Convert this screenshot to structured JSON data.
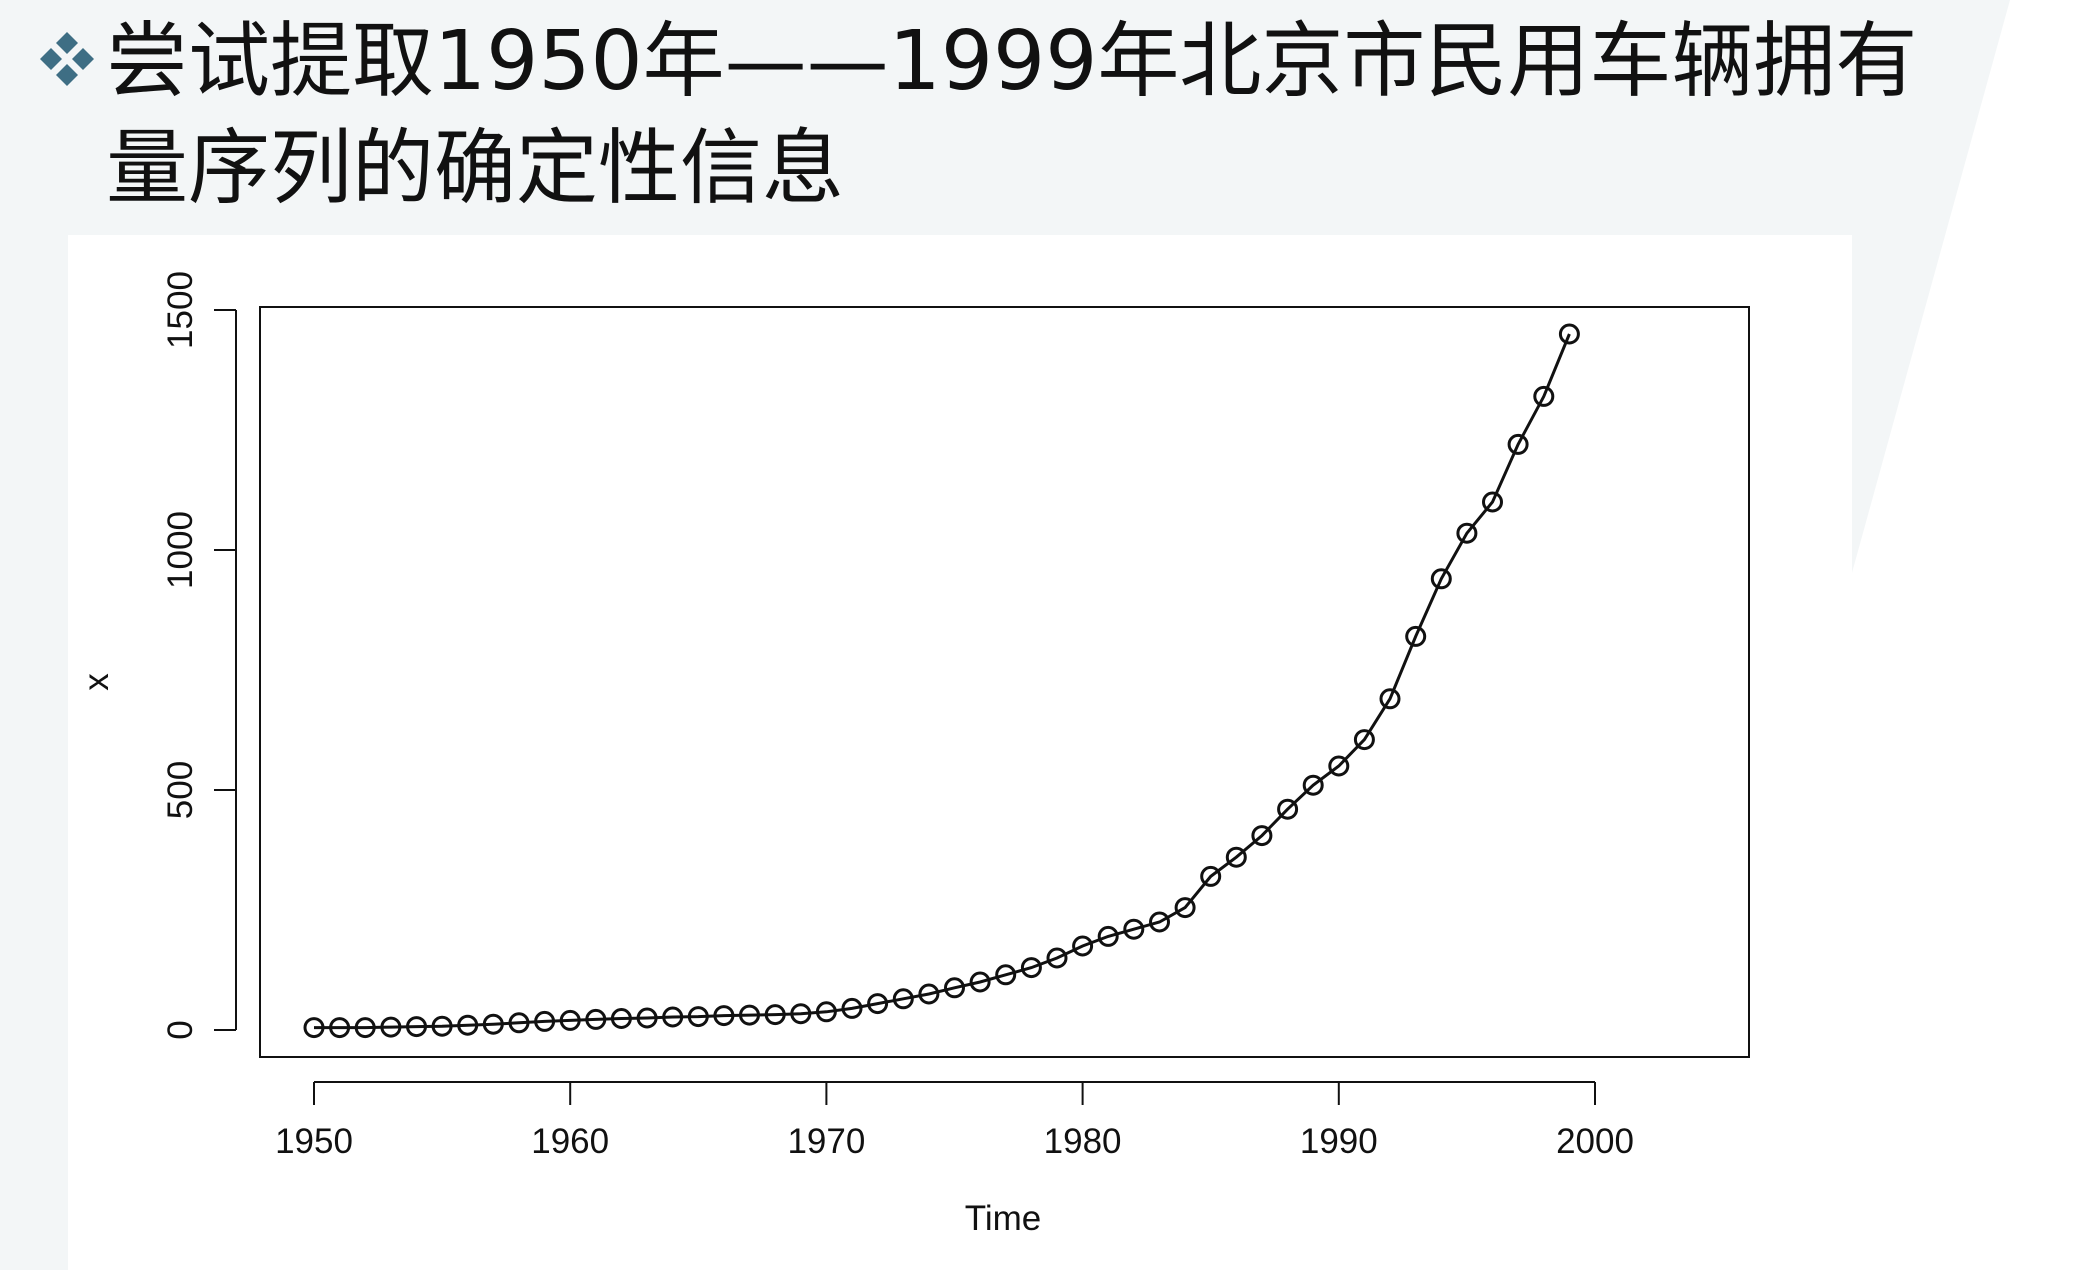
{
  "slide": {
    "title_line1": "尝试提取1950年——1999年北京市民用车辆拥有",
    "title_line2": "量序列的确定性信息",
    "bullet_icon": "diamond-cluster-icon",
    "accent_color": "#3e6e84",
    "background_color": "#f3f6f7"
  },
  "chart_data": {
    "type": "line",
    "title": "",
    "xlabel": "Time",
    "ylabel": "x",
    "xlim": [
      1950,
      2000
    ],
    "ylim": [
      0,
      1500
    ],
    "x_ticks": [
      1950,
      1960,
      1970,
      1980,
      1990,
      2000
    ],
    "y_ticks": [
      0,
      500,
      1000,
      1500
    ],
    "marker": "circle",
    "series": [
      {
        "name": "x",
        "x": [
          1950,
          1951,
          1952,
          1953,
          1954,
          1955,
          1956,
          1957,
          1958,
          1959,
          1960,
          1961,
          1962,
          1963,
          1964,
          1965,
          1966,
          1967,
          1968,
          1969,
          1970,
          1971,
          1972,
          1973,
          1974,
          1975,
          1976,
          1977,
          1978,
          1979,
          1980,
          1981,
          1982,
          1983,
          1984,
          1985,
          1986,
          1987,
          1988,
          1989,
          1990,
          1991,
          1992,
          1993,
          1994,
          1995,
          1996,
          1997,
          1998,
          1999
        ],
        "values": [
          5,
          5,
          5,
          6,
          7,
          8,
          10,
          12,
          15,
          18,
          20,
          22,
          24,
          25,
          27,
          28,
          30,
          31,
          32,
          34,
          38,
          45,
          55,
          65,
          75,
          88,
          100,
          115,
          130,
          150,
          175,
          195,
          210,
          225,
          255,
          320,
          360,
          405,
          460,
          510,
          550,
          605,
          690,
          820,
          940,
          1035,
          1100,
          1220,
          1320,
          1450
        ]
      }
    ]
  }
}
